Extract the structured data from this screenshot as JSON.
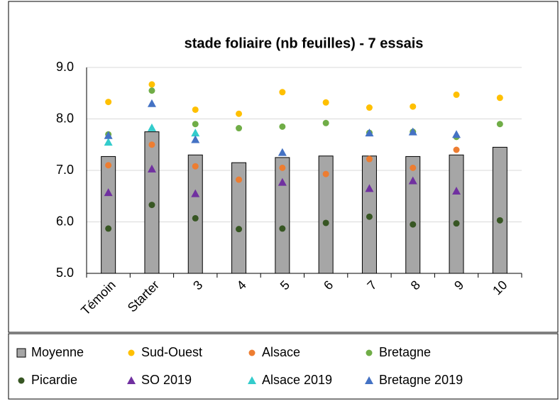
{
  "chart_data": {
    "type": "bar",
    "title": "stade foliaire (nb feuilles) - 7 essais",
    "categories": [
      "Témoin",
      "Starter",
      "3",
      "4",
      "5",
      "6",
      "7",
      "8",
      "9",
      "10"
    ],
    "ylim": [
      5,
      9
    ],
    "yticks": [
      {
        "value": 5,
        "label": "5.0"
      },
      {
        "value": 6,
        "label": "6.0"
      },
      {
        "value": 7,
        "label": "7.0"
      },
      {
        "value": 8,
        "label": "8.0"
      },
      {
        "value": 9,
        "label": "9.0"
      }
    ],
    "grid": true,
    "legend": "bottom",
    "series": [
      {
        "name": "Moyenne",
        "type": "bar",
        "color": "#a6a6a6",
        "values": [
          7.27,
          7.75,
          7.3,
          7.15,
          7.25,
          7.28,
          7.28,
          7.27,
          7.3,
          7.45
        ]
      },
      {
        "name": "Sud-Ouest",
        "type": "scatter",
        "marker": "circle",
        "color": "#ffc000",
        "values": [
          8.33,
          8.67,
          8.18,
          8.1,
          8.52,
          8.32,
          8.22,
          8.24,
          8.47,
          8.41
        ]
      },
      {
        "name": "Alsace",
        "type": "scatter",
        "marker": "circle",
        "color": "#ed7d31",
        "values": [
          7.1,
          7.5,
          7.08,
          6.82,
          7.05,
          6.93,
          7.22,
          7.05,
          7.4,
          null
        ]
      },
      {
        "name": "Bretagne",
        "type": "scatter",
        "marker": "circle",
        "color": "#70ad47",
        "values": [
          7.7,
          8.55,
          7.9,
          7.82,
          7.85,
          7.92,
          7.73,
          7.75,
          7.65,
          7.9
        ]
      },
      {
        "name": "Picardie",
        "type": "scatter",
        "marker": "circle",
        "color": "#375623",
        "values": [
          5.87,
          6.33,
          6.07,
          5.86,
          5.87,
          5.98,
          6.1,
          5.95,
          5.97,
          6.03
        ]
      },
      {
        "name": "SO 2019",
        "type": "scatter",
        "marker": "triangle",
        "color": "#7030a0",
        "values": [
          6.57,
          7.03,
          6.55,
          null,
          6.77,
          null,
          6.65,
          6.8,
          6.6,
          null
        ]
      },
      {
        "name": "Alsace 2019",
        "type": "scatter",
        "marker": "triangle",
        "color": "#33cccc",
        "values": [
          7.55,
          7.83,
          7.73,
          null,
          null,
          null,
          null,
          null,
          null,
          null
        ]
      },
      {
        "name": "Bretagne 2019",
        "type": "scatter",
        "marker": "triangle",
        "color": "#4472c4",
        "values": [
          7.68,
          8.3,
          7.6,
          null,
          7.35,
          null,
          7.73,
          7.75,
          7.7,
          null
        ]
      }
    ]
  }
}
